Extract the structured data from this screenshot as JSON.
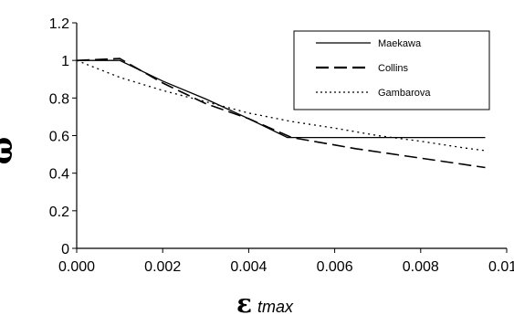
{
  "chart_data": {
    "type": "line",
    "xlabel": {
      "symbol": "ε",
      "subscript": "tmax"
    },
    "ylabel": "ω",
    "xlim": [
      0.0,
      0.01
    ],
    "ylim": [
      0,
      1.2
    ],
    "x_ticks": [
      "0.000",
      "0.002",
      "0.004",
      "0.006",
      "0.008",
      "0.010"
    ],
    "y_ticks": [
      "0",
      "0.2",
      "0.4",
      "0.6",
      "0.8",
      "1",
      "1.2"
    ],
    "grid": false,
    "legend_position": "top-right",
    "series": [
      {
        "name": "Maekawa",
        "style": "solid",
        "color": "#000000",
        "points": [
          [
            0.0,
            1.0
          ],
          [
            0.001,
            1.0
          ],
          [
            0.002,
            0.89
          ],
          [
            0.003,
            0.795
          ],
          [
            0.004,
            0.69
          ],
          [
            0.0049,
            0.59
          ],
          [
            0.0095,
            0.59
          ]
        ]
      },
      {
        "name": "Collins",
        "style": "dashed",
        "color": "#000000",
        "points": [
          [
            0.0,
            1.0
          ],
          [
            0.001,
            1.01
          ],
          [
            0.002,
            0.88
          ],
          [
            0.003,
            0.77
          ],
          [
            0.004,
            0.69
          ],
          [
            0.005,
            0.59
          ],
          [
            0.0065,
            0.53
          ],
          [
            0.008,
            0.48
          ],
          [
            0.0095,
            0.43
          ]
        ]
      },
      {
        "name": "Gambarova",
        "style": "dotted",
        "color": "#000000",
        "points": [
          [
            0.0,
            1.0
          ],
          [
            0.001,
            0.91
          ],
          [
            0.002,
            0.84
          ],
          [
            0.003,
            0.78
          ],
          [
            0.004,
            0.72
          ],
          [
            0.005,
            0.675
          ],
          [
            0.006,
            0.64
          ],
          [
            0.007,
            0.6
          ],
          [
            0.008,
            0.57
          ],
          [
            0.009,
            0.535
          ],
          [
            0.0095,
            0.52
          ]
        ]
      }
    ]
  }
}
